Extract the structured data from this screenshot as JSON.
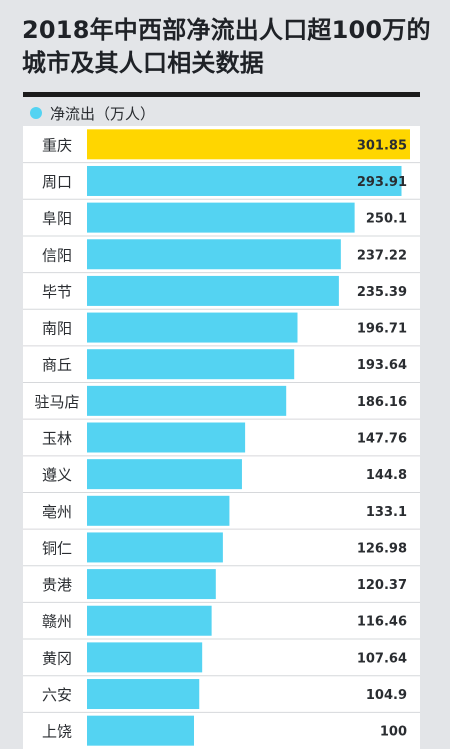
{
  "title_lines": [
    "2018年中西部净流出人口超100万的",
    "城市及其人口相关数据"
  ],
  "chart_data": {
    "type": "bar",
    "orientation": "horizontal",
    "title": "2018年中西部净流出人口超100万的城市及其人口相关数据",
    "legend": {
      "label": "净流出（万人）",
      "placement": "top-left"
    },
    "categories": [
      "重庆",
      "周口",
      "阜阳",
      "信阳",
      "毕节",
      "南阳",
      "商丘",
      "驻马店",
      "玉林",
      "遵义",
      "亳州",
      "铜仁",
      "贵港",
      "赣州",
      "黄冈",
      "六安",
      "上饶"
    ],
    "values": [
      301.85,
      293.91,
      250.1,
      237.22,
      235.39,
      196.71,
      193.64,
      186.16,
      147.76,
      144.8,
      133.1,
      126.98,
      120.37,
      116.46,
      107.64,
      104.9,
      100
    ],
    "value_labels": [
      "301.85",
      "293.91",
      "250.1",
      "237.22",
      "235.39",
      "196.71",
      "193.64",
      "186.16",
      "147.76",
      "144.8",
      "133.1",
      "126.98",
      "120.37",
      "116.46",
      "107.64",
      "104.9",
      "100"
    ],
    "highlight_index": 0,
    "grid": false,
    "colors": {
      "bar": "#54d3f2",
      "highlight": "#ffd600",
      "legend_dot": "#54d3f2",
      "row_line": "#d6d8db",
      "text": "#2a2d31"
    }
  }
}
